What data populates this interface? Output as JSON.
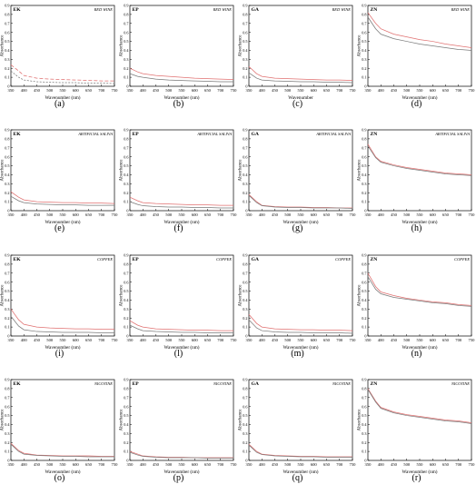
{
  "x_axis": {
    "label": "Wavenumber (nm)",
    "label_alt": "Wavenumber",
    "ticks": [
      350,
      400,
      450,
      500,
      550,
      600,
      650,
      700,
      750
    ],
    "ticks_a": [
      350,
      400,
      450,
      500,
      550,
      600,
      650,
      700,
      750
    ]
  },
  "y_axis": {
    "label": "Absorbance",
    "ticks": [
      0,
      0.1,
      0.2,
      0.3,
      0.4,
      0.5,
      0.6,
      0.7,
      0.8,
      0.9
    ]
  },
  "colors": {
    "series_1": "#e07070",
    "series_2": "#7a7a7a",
    "axis": "#000000"
  },
  "chart_data": [
    {
      "id": "a",
      "caption": "(a)",
      "type": "line",
      "tag": "EK",
      "medium": "RED WINE",
      "xlabel": "Wavenumber (nm)",
      "xlim": [
        350,
        750
      ],
      "ylim": [
        0,
        0.9
      ],
      "grid": false,
      "series": [
        {
          "x": [
            350,
            380,
            400,
            450,
            500,
            550,
            600,
            650,
            700,
            750
          ],
          "y": [
            0.24,
            0.17,
            0.12,
            0.09,
            0.08,
            0.075,
            0.07,
            0.065,
            0.06,
            0.06
          ],
          "dashed": true
        },
        {
          "x": [
            350,
            380,
            400,
            450,
            500,
            550,
            600,
            650,
            700,
            750
          ],
          "y": [
            0.17,
            0.1,
            0.07,
            0.05,
            0.045,
            0.04,
            0.04,
            0.035,
            0.035,
            0.03
          ],
          "dashed": true
        }
      ]
    },
    {
      "id": "b",
      "caption": "(b)",
      "type": "line",
      "tag": "EP",
      "medium": "RED WINE",
      "xlabel": "Wavenumber (nm)",
      "xlim": [
        350,
        750
      ],
      "ylim": [
        0,
        0.9
      ],
      "grid": false,
      "series": [
        {
          "x": [
            350,
            380,
            400,
            450,
            500,
            550,
            600,
            650,
            700,
            750
          ],
          "y": [
            0.2,
            0.16,
            0.14,
            0.12,
            0.11,
            0.1,
            0.09,
            0.085,
            0.08,
            0.075
          ]
        },
        {
          "x": [
            350,
            380,
            400,
            450,
            500,
            550,
            600,
            650,
            700,
            750
          ],
          "y": [
            0.14,
            0.11,
            0.1,
            0.08,
            0.07,
            0.065,
            0.06,
            0.055,
            0.05,
            0.05
          ]
        }
      ]
    },
    {
      "id": "c",
      "caption": "(c)",
      "type": "line",
      "tag": "GA",
      "medium": "RED WINE",
      "xlabel": "Wavenumber",
      "xlim": [
        350,
        750
      ],
      "ylim": [
        0,
        0.9
      ],
      "grid": false,
      "series": [
        {
          "x": [
            350,
            380,
            400,
            450,
            500,
            550,
            600,
            650,
            700,
            750
          ],
          "y": [
            0.22,
            0.14,
            0.11,
            0.09,
            0.085,
            0.08,
            0.075,
            0.07,
            0.07,
            0.065
          ]
        },
        {
          "x": [
            350,
            380,
            400,
            450,
            500,
            550,
            600,
            650,
            700,
            750
          ],
          "y": [
            0.15,
            0.09,
            0.07,
            0.06,
            0.055,
            0.05,
            0.05,
            0.045,
            0.045,
            0.04
          ]
        }
      ]
    },
    {
      "id": "d",
      "caption": "(d)",
      "type": "line",
      "tag": "ZN",
      "medium": "RED WINE",
      "xlabel": "Wavenumber (nm)",
      "xlim": [
        350,
        750
      ],
      "ylim": [
        0,
        0.9
      ],
      "grid": false,
      "series": [
        {
          "x": [
            350,
            380,
            400,
            450,
            500,
            550,
            600,
            650,
            700,
            750
          ],
          "y": [
            0.82,
            0.7,
            0.64,
            0.58,
            0.55,
            0.52,
            0.5,
            0.47,
            0.45,
            0.43
          ]
        },
        {
          "x": [
            350,
            380,
            400,
            450,
            500,
            550,
            600,
            650,
            700,
            750
          ],
          "y": [
            0.77,
            0.64,
            0.58,
            0.53,
            0.5,
            0.47,
            0.45,
            0.43,
            0.41,
            0.4
          ]
        }
      ]
    },
    {
      "id": "e",
      "caption": "(e)",
      "type": "line",
      "tag": "EK",
      "medium": "ARTIFICIAL SALIVA",
      "xlabel": "Wavenumber (nm)",
      "xlim": [
        350,
        750
      ],
      "ylim": [
        0,
        0.9
      ],
      "grid": false,
      "series": [
        {
          "x": [
            350,
            380,
            400,
            450,
            500,
            550,
            600,
            650,
            700,
            750
          ],
          "y": [
            0.21,
            0.15,
            0.12,
            0.1,
            0.095,
            0.09,
            0.09,
            0.085,
            0.085,
            0.08
          ]
        },
        {
          "x": [
            350,
            380,
            400,
            450,
            500,
            550,
            600,
            650,
            700,
            750
          ],
          "y": [
            0.16,
            0.11,
            0.09,
            0.075,
            0.07,
            0.065,
            0.065,
            0.06,
            0.06,
            0.06
          ]
        }
      ]
    },
    {
      "id": "f",
      "caption": "(f)",
      "type": "line",
      "tag": "EP",
      "medium": "ARTIFICIAL SALIVA",
      "xlabel": "Wavenumber (nm)",
      "xlim": [
        350,
        750
      ],
      "ylim": [
        0,
        0.9
      ],
      "grid": false,
      "series": [
        {
          "x": [
            350,
            380,
            400,
            450,
            500,
            550,
            600,
            650,
            700,
            750
          ],
          "y": [
            0.15,
            0.11,
            0.09,
            0.08,
            0.075,
            0.07,
            0.065,
            0.065,
            0.06,
            0.06
          ]
        },
        {
          "x": [
            350,
            380,
            400,
            450,
            500,
            550,
            600,
            650,
            700,
            750
          ],
          "y": [
            0.1,
            0.07,
            0.055,
            0.045,
            0.04,
            0.04,
            0.035,
            0.035,
            0.03,
            0.03
          ]
        }
      ]
    },
    {
      "id": "g",
      "caption": "(g)",
      "type": "line",
      "tag": "GA",
      "medium": "ARTIFICIAL SALIVA",
      "xlabel": "Wavenumber (nm)",
      "xlim": [
        350,
        750
      ],
      "ylim": [
        0,
        0.9
      ],
      "grid": false,
      "series": [
        {
          "x": [
            350,
            380,
            400,
            450,
            500,
            550,
            600,
            650,
            700,
            750
          ],
          "y": [
            0.18,
            0.1,
            0.06,
            0.045,
            0.04,
            0.04,
            0.035,
            0.035,
            0.03,
            0.03
          ]
        },
        {
          "x": [
            350,
            380,
            400,
            450,
            500,
            550,
            600,
            650,
            700,
            750
          ],
          "y": [
            0.17,
            0.09,
            0.055,
            0.04,
            0.035,
            0.035,
            0.03,
            0.03,
            0.03,
            0.025
          ]
        }
      ]
    },
    {
      "id": "h",
      "caption": "(h)",
      "type": "line",
      "tag": "ZN",
      "medium": "ARTIFICIAL SALIVA",
      "xlabel": "Wavenumber (nm)",
      "xlim": [
        350,
        750
      ],
      "ylim": [
        0,
        0.9
      ],
      "grid": false,
      "series": [
        {
          "x": [
            350,
            380,
            400,
            450,
            500,
            550,
            600,
            650,
            700,
            750
          ],
          "y": [
            0.74,
            0.6,
            0.55,
            0.51,
            0.48,
            0.46,
            0.44,
            0.42,
            0.41,
            0.4
          ]
        },
        {
          "x": [
            350,
            380,
            400,
            450,
            500,
            550,
            600,
            650,
            700,
            750
          ],
          "y": [
            0.72,
            0.59,
            0.54,
            0.5,
            0.47,
            0.45,
            0.43,
            0.41,
            0.4,
            0.39
          ]
        }
      ]
    },
    {
      "id": "i",
      "caption": "(i)",
      "type": "line",
      "tag": "EK",
      "medium": "COFFEE",
      "xlabel": "Wavenumber (nm)",
      "xlim": [
        350,
        750
      ],
      "ylim": [
        0,
        0.9
      ],
      "grid": false,
      "series": [
        {
          "x": [
            350,
            380,
            400,
            450,
            500,
            550,
            600,
            650,
            700,
            750
          ],
          "y": [
            0.3,
            0.18,
            0.13,
            0.1,
            0.09,
            0.085,
            0.08,
            0.08,
            0.075,
            0.075
          ]
        },
        {
          "x": [
            350,
            380,
            400,
            450,
            500,
            550,
            600,
            650,
            700,
            750
          ],
          "y": [
            0.22,
            0.11,
            0.07,
            0.05,
            0.045,
            0.04,
            0.04,
            0.04,
            0.035,
            0.035
          ]
        }
      ]
    },
    {
      "id": "l",
      "caption": "(l)",
      "type": "line",
      "tag": "EP",
      "medium": "COFFEE",
      "xlabel": "Wavenumber (nm)",
      "xlim": [
        350,
        750
      ],
      "ylim": [
        0,
        0.9
      ],
      "grid": false,
      "series": [
        {
          "x": [
            350,
            380,
            400,
            450,
            500,
            550,
            600,
            650,
            700,
            750
          ],
          "y": [
            0.17,
            0.12,
            0.1,
            0.08,
            0.075,
            0.07,
            0.065,
            0.065,
            0.06,
            0.06
          ]
        },
        {
          "x": [
            350,
            380,
            400,
            450,
            500,
            550,
            600,
            650,
            700,
            750
          ],
          "y": [
            0.12,
            0.08,
            0.06,
            0.05,
            0.045,
            0.04,
            0.04,
            0.035,
            0.035,
            0.035
          ]
        }
      ]
    },
    {
      "id": "m",
      "caption": "(m)",
      "type": "line",
      "tag": "GA",
      "medium": "COFFEE",
      "xlabel": "Wavenumber (nm)",
      "xlim": [
        350,
        750
      ],
      "ylim": [
        0,
        0.9
      ],
      "grid": false,
      "series": [
        {
          "x": [
            350,
            380,
            400,
            450,
            500,
            550,
            600,
            650,
            700,
            750
          ],
          "y": [
            0.24,
            0.14,
            0.1,
            0.08,
            0.075,
            0.07,
            0.07,
            0.065,
            0.065,
            0.06
          ]
        },
        {
          "x": [
            350,
            380,
            400,
            450,
            500,
            550,
            600,
            650,
            700,
            750
          ],
          "y": [
            0.18,
            0.09,
            0.06,
            0.045,
            0.04,
            0.04,
            0.035,
            0.035,
            0.035,
            0.03
          ]
        }
      ]
    },
    {
      "id": "n",
      "caption": "(n)",
      "type": "line",
      "tag": "ZN",
      "medium": "COFFEE",
      "xlabel": "Wavenumber (nm)",
      "xlim": [
        350,
        750
      ],
      "ylim": [
        0,
        0.9
      ],
      "grid": false,
      "series": [
        {
          "x": [
            350,
            380,
            400,
            450,
            500,
            550,
            600,
            650,
            700,
            750
          ],
          "y": [
            0.7,
            0.55,
            0.49,
            0.45,
            0.42,
            0.4,
            0.38,
            0.37,
            0.35,
            0.34
          ]
        },
        {
          "x": [
            350,
            380,
            400,
            450,
            500,
            550,
            600,
            650,
            700,
            750
          ],
          "y": [
            0.66,
            0.52,
            0.47,
            0.43,
            0.41,
            0.39,
            0.37,
            0.36,
            0.34,
            0.33
          ]
        }
      ]
    },
    {
      "id": "o",
      "caption": "(o)",
      "type": "line",
      "tag": "EK",
      "medium": "NICOTINE",
      "xlabel": "Wavenumber (nm)",
      "xlim": [
        350,
        750
      ],
      "ylim": [
        0,
        0.9
      ],
      "grid": false,
      "series": [
        {
          "x": [
            350,
            380,
            400,
            450,
            500,
            550,
            600,
            650,
            700,
            750
          ],
          "y": [
            0.19,
            0.11,
            0.08,
            0.06,
            0.055,
            0.05,
            0.05,
            0.05,
            0.045,
            0.045
          ]
        },
        {
          "x": [
            350,
            380,
            400,
            450,
            500,
            550,
            600,
            650,
            700,
            750
          ],
          "y": [
            0.18,
            0.1,
            0.07,
            0.055,
            0.05,
            0.045,
            0.045,
            0.04,
            0.04,
            0.04
          ]
        }
      ]
    },
    {
      "id": "p",
      "caption": "(p)",
      "type": "line",
      "tag": "EP",
      "medium": "NICOTINE",
      "xlabel": "Wavenumber (nm)",
      "xlim": [
        350,
        750
      ],
      "ylim": [
        0,
        0.9
      ],
      "grid": false,
      "series": [
        {
          "x": [
            350,
            380,
            400,
            450,
            500,
            550,
            600,
            650,
            700,
            750
          ],
          "y": [
            0.1,
            0.07,
            0.05,
            0.04,
            0.035,
            0.035,
            0.03,
            0.03,
            0.03,
            0.03
          ]
        },
        {
          "x": [
            350,
            380,
            400,
            450,
            500,
            550,
            600,
            650,
            700,
            750
          ],
          "y": [
            0.09,
            0.06,
            0.045,
            0.035,
            0.03,
            0.03,
            0.03,
            0.025,
            0.025,
            0.025
          ]
        }
      ]
    },
    {
      "id": "q",
      "caption": "(q)",
      "type": "line",
      "tag": "GA",
      "medium": "NICOTINE",
      "xlabel": "Wavenumber (nm)",
      "xlim": [
        350,
        750
      ],
      "ylim": [
        0,
        0.9
      ],
      "grid": false,
      "series": [
        {
          "x": [
            350,
            380,
            400,
            450,
            500,
            550,
            600,
            650,
            700,
            750
          ],
          "y": [
            0.18,
            0.1,
            0.07,
            0.055,
            0.05,
            0.045,
            0.045,
            0.04,
            0.04,
            0.04
          ]
        },
        {
          "x": [
            350,
            380,
            400,
            450,
            500,
            550,
            600,
            650,
            700,
            750
          ],
          "y": [
            0.17,
            0.09,
            0.065,
            0.05,
            0.045,
            0.04,
            0.04,
            0.035,
            0.035,
            0.035
          ]
        }
      ]
    },
    {
      "id": "r",
      "caption": "(r)",
      "type": "line",
      "tag": "ZN",
      "medium": "NICOTINE",
      "xlabel": "Wavenumber (nm)",
      "xlim": [
        350,
        750
      ],
      "ylim": [
        0,
        0.9
      ],
      "grid": false,
      "series": [
        {
          "x": [
            350,
            380,
            400,
            450,
            500,
            550,
            600,
            650,
            700,
            750
          ],
          "y": [
            0.8,
            0.66,
            0.59,
            0.54,
            0.51,
            0.49,
            0.47,
            0.45,
            0.44,
            0.42
          ]
        },
        {
          "x": [
            350,
            380,
            400,
            450,
            500,
            550,
            600,
            650,
            700,
            750
          ],
          "y": [
            0.79,
            0.65,
            0.58,
            0.53,
            0.5,
            0.48,
            0.46,
            0.44,
            0.43,
            0.41
          ]
        }
      ]
    }
  ]
}
